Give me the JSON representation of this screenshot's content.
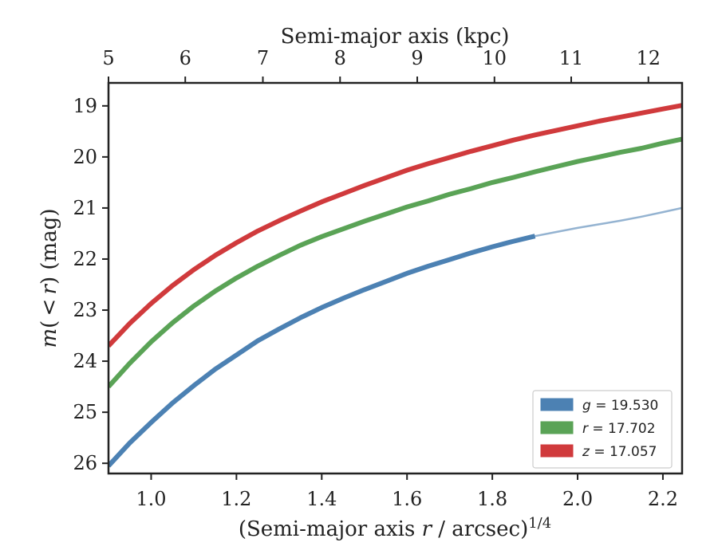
{
  "chart_data": {
    "type": "line",
    "xlabel": {
      "prefix": "(Semi-major axis ",
      "var": "r",
      "suffix": " / arcsec)",
      "sup": "1/4"
    },
    "ylabel": {
      "m": "m",
      "mid": "( < ",
      "r": "r",
      "close": ")",
      "unit": " (mag)"
    },
    "top_xlabel": "Semi-major axis (kpc)",
    "xlim": [
      0.9,
      2.245
    ],
    "ylim": [
      26.2,
      18.55
    ],
    "y_inverted": true,
    "x_ticks": [
      1.0,
      1.2,
      1.4,
      1.6,
      1.8,
      2.0,
      2.2
    ],
    "x_tick_labels": [
      "1.0",
      "1.2",
      "1.4",
      "1.6",
      "1.8",
      "2.0",
      "2.2"
    ],
    "y_ticks": [
      19,
      20,
      21,
      22,
      23,
      24,
      25,
      26
    ],
    "y_tick_labels": [
      "19",
      "20",
      "21",
      "22",
      "23",
      "24",
      "25",
      "26"
    ],
    "top_x_ticks_kpc": [
      5,
      6,
      7,
      8,
      9,
      10,
      11,
      12
    ],
    "top_x_tick_labels": [
      "5",
      "6",
      "7",
      "8",
      "9",
      "10",
      "11",
      "12"
    ],
    "top_x_tick_positions": [
      0.9,
      1.08,
      1.262,
      1.443,
      1.624,
      1.805,
      1.985,
      2.166
    ],
    "grid": false,
    "legend_position": "lower-right",
    "series": [
      {
        "name": "g = 19.530",
        "band": "g",
        "value": "19.530",
        "color": "#4c81b3",
        "x": [
          0.9,
          0.95,
          1.0,
          1.05,
          1.1,
          1.15,
          1.2,
          1.25,
          1.3,
          1.35,
          1.4,
          1.45,
          1.5,
          1.55,
          1.6,
          1.65,
          1.7,
          1.75,
          1.8,
          1.85,
          1.9
        ],
        "y": [
          26.05,
          25.6,
          25.2,
          24.82,
          24.48,
          24.16,
          23.88,
          23.6,
          23.37,
          23.15,
          22.95,
          22.77,
          22.6,
          22.44,
          22.28,
          22.14,
          22.01,
          21.88,
          21.76,
          21.65,
          21.55
        ],
        "extension_x": [
          1.9,
          1.95,
          2.0,
          2.05,
          2.1,
          2.15,
          2.2,
          2.245
        ],
        "extension_y": [
          21.55,
          21.47,
          21.39,
          21.32,
          21.25,
          21.17,
          21.08,
          21.0
        ]
      },
      {
        "name": "r = 17.702",
        "band": "r",
        "value": "17.702",
        "color": "#5aa356",
        "x": [
          0.9,
          0.95,
          1.0,
          1.05,
          1.1,
          1.15,
          1.2,
          1.25,
          1.3,
          1.35,
          1.4,
          1.45,
          1.5,
          1.55,
          1.6,
          1.65,
          1.7,
          1.75,
          1.8,
          1.85,
          1.9,
          1.95,
          2.0,
          2.05,
          2.1,
          2.15,
          2.2,
          2.245
        ],
        "y": [
          24.5,
          24.04,
          23.62,
          23.25,
          22.92,
          22.63,
          22.37,
          22.14,
          21.93,
          21.73,
          21.56,
          21.41,
          21.26,
          21.12,
          20.98,
          20.86,
          20.73,
          20.62,
          20.5,
          20.4,
          20.29,
          20.19,
          20.09,
          20.0,
          19.91,
          19.83,
          19.73,
          19.65
        ]
      },
      {
        "name": "z = 17.057",
        "band": "z",
        "value": "17.057",
        "color": "#d03a3c",
        "x": [
          0.9,
          0.95,
          1.0,
          1.05,
          1.1,
          1.15,
          1.2,
          1.25,
          1.3,
          1.35,
          1.4,
          1.45,
          1.5,
          1.55,
          1.6,
          1.65,
          1.7,
          1.75,
          1.8,
          1.85,
          1.9,
          1.95,
          2.0,
          2.05,
          2.1,
          2.15,
          2.2,
          2.245
        ],
        "y": [
          23.7,
          23.26,
          22.87,
          22.52,
          22.21,
          21.93,
          21.68,
          21.45,
          21.25,
          21.06,
          20.88,
          20.72,
          20.56,
          20.41,
          20.26,
          20.13,
          20.01,
          19.89,
          19.78,
          19.67,
          19.57,
          19.48,
          19.39,
          19.3,
          19.22,
          19.14,
          19.06,
          18.99
        ]
      }
    ]
  }
}
